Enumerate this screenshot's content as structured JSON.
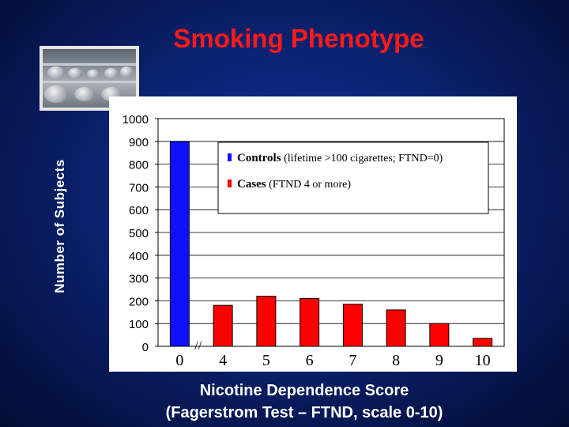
{
  "slide": {
    "title": "Smoking Phenotype",
    "background_color": "#0b2270",
    "title_color": "#ff1a1a"
  },
  "photo": {
    "description_icon": "factory-photo"
  },
  "chart_data": {
    "type": "bar",
    "title": "",
    "ylabel": "Number of Subjects",
    "xlabel": "Nicotine Dependence Score",
    "xlabel_line2": "(Fagerstrom Test – FTND, scale 0-10)",
    "categories": [
      "0",
      "4",
      "5",
      "6",
      "7",
      "8",
      "9",
      "10"
    ],
    "series": [
      {
        "name": "Controls",
        "color": "#1010ff",
        "values": [
          900,
          null,
          null,
          null,
          null,
          null,
          null,
          null
        ]
      },
      {
        "name": "Cases",
        "color": "#ff0000",
        "values": [
          null,
          180,
          220,
          210,
          185,
          160,
          100,
          35
        ]
      }
    ],
    "ylim": [
      0,
      1000
    ],
    "yticks": [
      0,
      100,
      200,
      300,
      400,
      500,
      600,
      700,
      800,
      900,
      1000
    ],
    "axis_break_marker": "//",
    "grid": true,
    "legend": {
      "placement": "top-right",
      "entries": [
        {
          "series": "Controls",
          "label_bold": "Controls",
          "label_rest": " (lifetime >100 cigarettes; FTND=0)",
          "color": "#1010ff"
        },
        {
          "series": "Cases",
          "label_bold": "Cases",
          "label_rest": " (FTND 4 or more)",
          "color": "#ff0000"
        }
      ]
    }
  }
}
